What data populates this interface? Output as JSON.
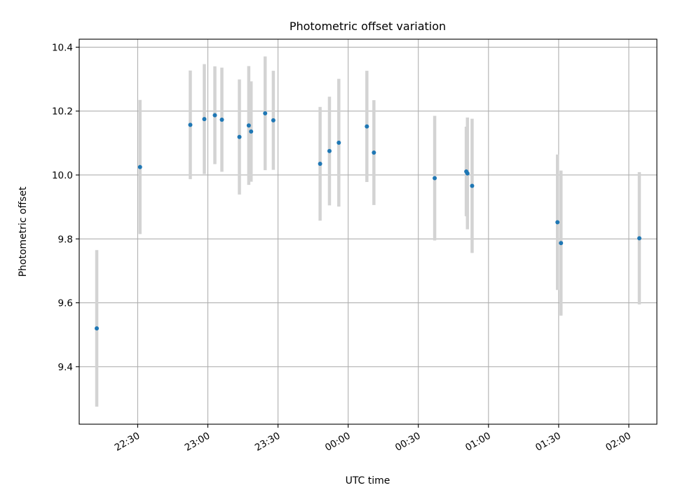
{
  "chart_data": {
    "type": "scatter",
    "title": "Photometric offset variation",
    "xlabel": "UTC time",
    "ylabel": "Photometric offset",
    "x_unit": "UTC time",
    "xlim": [
      "22:05",
      "02:12"
    ],
    "ylim": [
      9.22,
      10.425
    ],
    "grid": true,
    "x_ticks": [
      "22:30",
      "23:00",
      "23:30",
      "00:00",
      "00:30",
      "01:00",
      "01:30",
      "02:00"
    ],
    "y_ticks": [
      "9.4",
      "9.6",
      "9.8",
      "10.0",
      "10.2",
      "10.4"
    ],
    "colors": {
      "point": "#1f77b4",
      "errorbar": "#d3d3d3"
    },
    "points": [
      {
        "t": "22:12.5",
        "y": 9.52,
        "err": 0.245
      },
      {
        "t": "22:31",
        "y": 10.025,
        "err": 0.21
      },
      {
        "t": "22:52.5",
        "y": 10.157,
        "err": 0.17
      },
      {
        "t": "22:58.5",
        "y": 10.175,
        "err": 0.172
      },
      {
        "t": "23:03",
        "y": 10.187,
        "err": 0.153
      },
      {
        "t": "23:06",
        "y": 10.173,
        "err": 0.163
      },
      {
        "t": "23:13.5",
        "y": 10.119,
        "err": 0.18
      },
      {
        "t": "23:17.5",
        "y": 10.155,
        "err": 0.186
      },
      {
        "t": "23:18.5",
        "y": 10.136,
        "err": 0.157
      },
      {
        "t": "23:24.5",
        "y": 10.193,
        "err": 0.178
      },
      {
        "t": "23:28",
        "y": 10.171,
        "err": 0.155
      },
      {
        "t": "23:48",
        "y": 10.035,
        "err": 0.178
      },
      {
        "t": "23:52",
        "y": 10.075,
        "err": 0.17
      },
      {
        "t": "23:56",
        "y": 10.101,
        "err": 0.2
      },
      {
        "t": "00:08",
        "y": 10.152,
        "err": 0.174
      },
      {
        "t": "00:11",
        "y": 10.07,
        "err": 0.164
      },
      {
        "t": "00:37",
        "y": 9.99,
        "err": 0.195
      },
      {
        "t": "00:50.5",
        "y": 10.011,
        "err": 0.14
      },
      {
        "t": "00:51",
        "y": 10.005,
        "err": 0.175
      },
      {
        "t": "00:53",
        "y": 9.966,
        "err": 0.21
      },
      {
        "t": "01:29.5",
        "y": 9.852,
        "err": 0.212
      },
      {
        "t": "01:31",
        "y": 9.787,
        "err": 0.227
      },
      {
        "t": "02:04.5",
        "y": 9.802,
        "err": 0.207
      }
    ]
  }
}
